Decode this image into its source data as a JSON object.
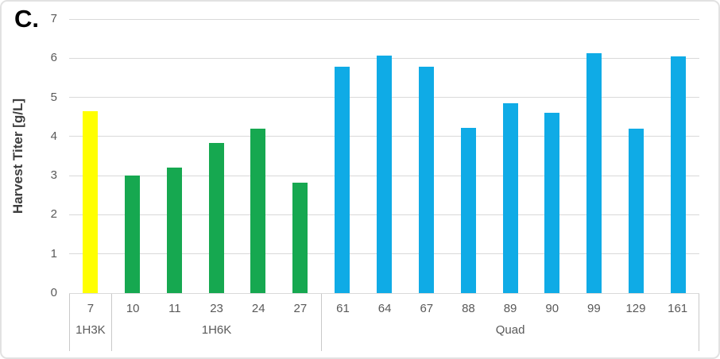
{
  "panel_label": "C.",
  "chart_data": {
    "type": "bar",
    "title": "C.",
    "ylabel": "Harvest Titer [g/L]",
    "xlabel": "",
    "ylim": [
      0,
      7
    ],
    "yticks": [
      0,
      1,
      2,
      3,
      4,
      5,
      6,
      7
    ],
    "grid": true,
    "legend": "none",
    "categories": [
      "7",
      "10",
      "11",
      "23",
      "24",
      "27",
      "61",
      "64",
      "67",
      "88",
      "89",
      "90",
      "99",
      "129",
      "161"
    ],
    "values": [
      4.65,
      3.0,
      3.2,
      3.84,
      4.2,
      2.83,
      5.78,
      6.06,
      5.78,
      4.23,
      4.85,
      4.6,
      6.13,
      4.2,
      6.05
    ],
    "groups": [
      {
        "label": "1H3K",
        "span": 1,
        "color": "#ffff00"
      },
      {
        "label": "1H6K",
        "span": 5,
        "color": "#16a850"
      },
      {
        "label": "Quad",
        "span": 9,
        "color": "#0fabe6"
      }
    ],
    "colors": {
      "gridline": "#d9d9d9",
      "axis_text": "#595959",
      "axis_title": "#3f3f3f",
      "separator": "#c9c9c9"
    }
  }
}
